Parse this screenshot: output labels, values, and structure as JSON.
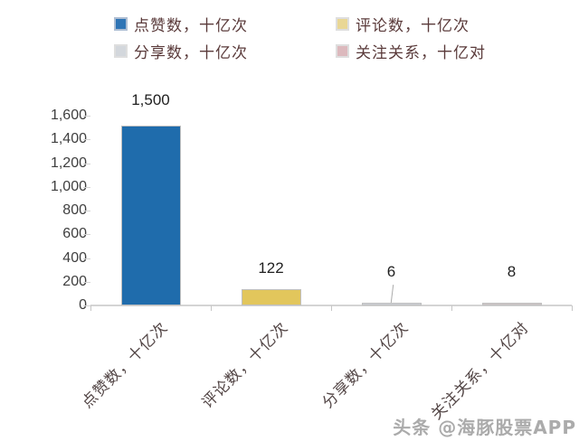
{
  "chart_data": {
    "type": "bar",
    "title": "",
    "categories": [
      "点赞数，十亿次",
      "评论数，十亿次",
      "分享数，十亿次",
      "关注关系，十亿对"
    ],
    "values": [
      1500,
      122,
      6,
      8
    ],
    "value_labels": [
      "1,500",
      "122",
      "6",
      "8"
    ],
    "bar_colors": [
      "#1F6CAC",
      "#E2C65C",
      "#CDD1D6",
      "#CFC6C7"
    ],
    "bar_border_color": "#BFBFBF",
    "xlabel": "",
    "ylabel": "",
    "ylim": [
      0,
      1600
    ],
    "yticks": [
      0,
      200,
      400,
      600,
      800,
      1000,
      1200,
      1400,
      1600
    ],
    "ytick_labels": [
      "0",
      "200",
      "400",
      "600",
      "800",
      "1,000",
      "1,200",
      "1,400",
      "1,600"
    ],
    "grid": false,
    "legend_position": "top",
    "leader_line_category": "分享数，十亿次"
  },
  "legend": {
    "items": [
      {
        "label": "点赞数，十亿次",
        "swatch_color": "#2E74B5",
        "swatch_border": "#AEBED3"
      },
      {
        "label": "评论数，十亿次",
        "swatch_color": "#E9D795",
        "swatch_border": "#DEDEDE"
      },
      {
        "label": "分享数，十亿次",
        "swatch_color": "#D3D7DC",
        "swatch_border": "#DEDEDE"
      },
      {
        "label": "关注关系，十亿对",
        "swatch_color": "#DCB9BD",
        "swatch_border": "#DEDEDE"
      }
    ],
    "text_color": "#5A3A3A"
  },
  "watermark": {
    "text": "头条 @海豚股票APP"
  },
  "colors": {
    "background": "#FFFFFF",
    "axis_line": "#D4D4D4",
    "tick": "#C6C6C6",
    "y_label_text": "#3F3F3F",
    "value_label_text": "#1F1F1F",
    "x_label_text": "#534646",
    "watermark_text": "#ABABAB"
  }
}
